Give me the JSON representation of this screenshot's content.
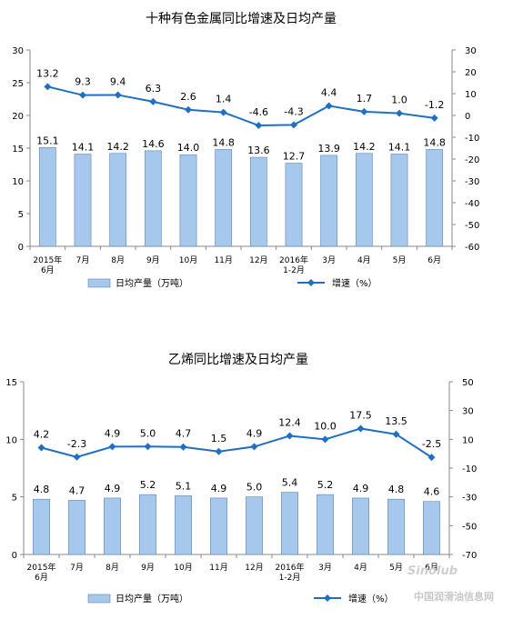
{
  "chart_data": [
    {
      "type": "bar+line",
      "title": "十种有色金属同比增速及日均产量",
      "categories": [
        "2015年\n6月",
        "7月",
        "8月",
        "9月",
        "10月",
        "11月",
        "12月",
        "2016年\n1-2月",
        "3月",
        "4月",
        "5月",
        "6月"
      ],
      "ylim_left": [
        0,
        30
      ],
      "yticks_left": [
        0,
        5,
        10,
        15,
        20,
        25,
        30
      ],
      "ylim_right": [
        -60,
        30
      ],
      "yticks_right": [
        -60,
        -50,
        -40,
        -30,
        -20,
        -10,
        0,
        10,
        20,
        30
      ],
      "grid": false,
      "legend_position": "bottom",
      "series": [
        {
          "name": "日均产量（万吨）",
          "kind": "bar",
          "axis": "left",
          "color": "#a6c8ec",
          "values": [
            15.1,
            14.1,
            14.2,
            14.6,
            14.0,
            14.8,
            13.6,
            12.7,
            13.9,
            14.2,
            14.1,
            14.8
          ],
          "labels": [
            "15.1",
            "14.1",
            "14.2",
            "14.6",
            "14.0",
            "14.8",
            "13.6",
            "12.7",
            "13.9",
            "14.2",
            "14.1",
            "14.8"
          ]
        },
        {
          "name": "增速（%）",
          "kind": "line",
          "axis": "right",
          "color": "#1f6fc4",
          "values": [
            13.2,
            9.3,
            9.4,
            6.3,
            2.6,
            1.4,
            -4.6,
            -4.3,
            4.4,
            1.7,
            1.0,
            -1.2
          ],
          "labels": [
            "13.2",
            "9.3",
            "9.4",
            "6.3",
            "2.6",
            "1.4",
            "-4.6",
            "-4.3",
            "4.4",
            "1.7",
            "1.0",
            "-1.2"
          ]
        }
      ]
    },
    {
      "type": "bar+line",
      "title": "乙烯同比增速及日均产量",
      "categories": [
        "2015年\n6月",
        "7月",
        "8月",
        "9月",
        "10月",
        "11月",
        "12月",
        "2016年\n1-2月",
        "3月",
        "4月",
        "5月",
        "6月"
      ],
      "ylim_left": [
        0,
        15
      ],
      "yticks_left": [
        0,
        5,
        10,
        15
      ],
      "ylim_right": [
        -70,
        50
      ],
      "yticks_right": [
        -70,
        -50,
        -30,
        -10,
        10,
        30,
        50
      ],
      "grid": false,
      "legend_position": "bottom",
      "series": [
        {
          "name": "日均产量（万吨）",
          "kind": "bar",
          "axis": "left",
          "color": "#a6c8ec",
          "values": [
            4.8,
            4.7,
            4.9,
            5.2,
            5.1,
            4.9,
            5.0,
            5.4,
            5.2,
            4.9,
            4.8,
            4.6
          ],
          "labels": [
            "4.8",
            "4.7",
            "4.9",
            "5.2",
            "5.1",
            "4.9",
            "5.0",
            "5.4",
            "5.2",
            "4.9",
            "4.8",
            "4.6"
          ]
        },
        {
          "name": "增速（%）",
          "kind": "line",
          "axis": "right",
          "color": "#1f6fc4",
          "values": [
            4.2,
            -2.3,
            4.9,
            5.0,
            4.7,
            1.5,
            4.9,
            12.4,
            10.0,
            17.5,
            13.5,
            -2.5
          ],
          "labels": [
            "4.2",
            "-2.3",
            "4.9",
            "5.0",
            "4.7",
            "1.5",
            "4.9",
            "12.4",
            "10.0",
            "17.5",
            "13.5",
            "-2.5"
          ]
        }
      ]
    }
  ],
  "watermark": {
    "logo": "Sinolub",
    "text": "中国润滑油信息网"
  }
}
